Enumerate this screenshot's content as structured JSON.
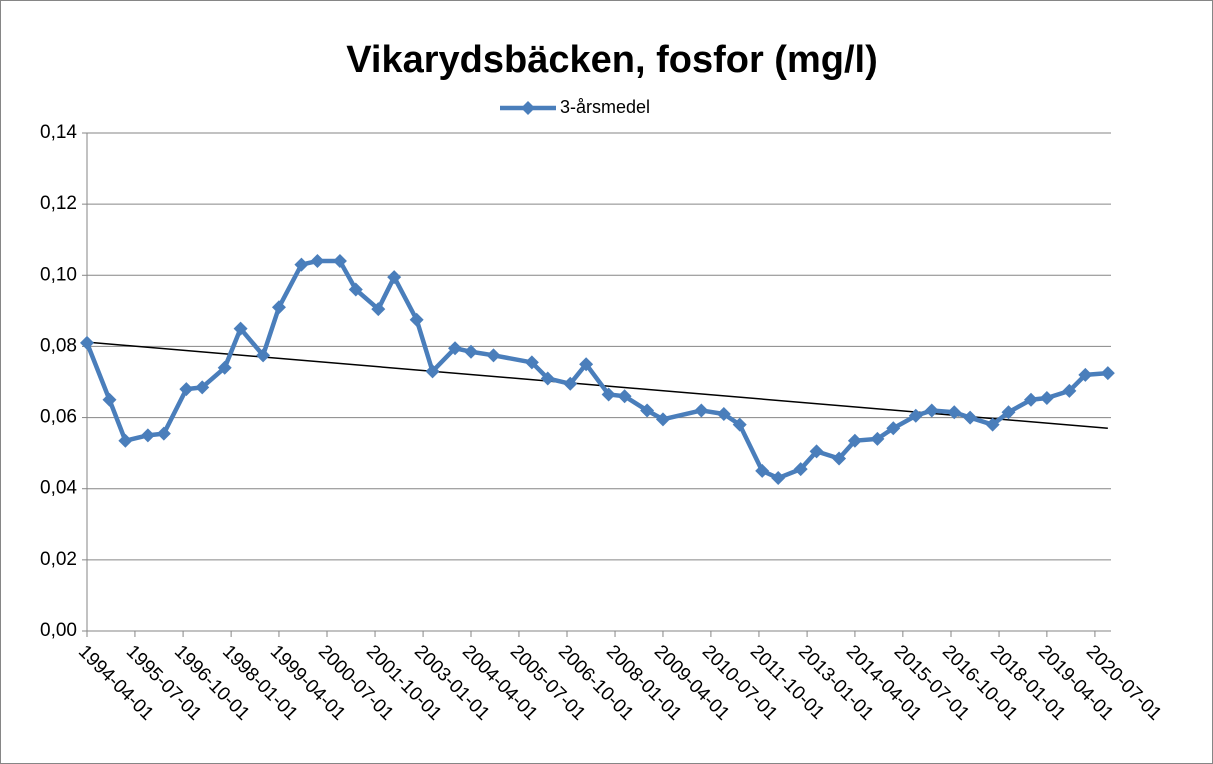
{
  "chart_data": {
    "type": "line",
    "title": "Vikarydsbäcken, fosfor (mg/l)",
    "x": [
      "1994-04-01",
      "1994-11-01",
      "1995-04-01",
      "1995-11-01",
      "1996-04-01",
      "1996-11-01",
      "1997-04-01",
      "1997-11-01",
      "1998-04-01",
      "1998-11-01",
      "1999-04-01",
      "1999-11-01",
      "2000-04-01",
      "2000-11-01",
      "2001-04-01",
      "2001-11-01",
      "2002-04-01",
      "2002-11-01",
      "2003-04-01",
      "2003-11-01",
      "2004-04-01",
      "2004-11-01",
      "2005-11-01",
      "2006-04-01",
      "2006-11-01",
      "2007-04-01",
      "2007-11-01",
      "2008-04-01",
      "2008-11-01",
      "2009-04-01",
      "2010-04-01",
      "2010-11-01",
      "2011-04-01",
      "2011-11-01",
      "2012-04-01",
      "2012-11-01",
      "2013-04-01",
      "2013-11-01",
      "2014-04-01",
      "2014-11-01",
      "2015-04-01",
      "2015-11-01",
      "2016-04-01",
      "2016-11-01",
      "2017-04-01",
      "2017-11-01",
      "2018-04-01",
      "2018-11-01",
      "2019-04-01",
      "2019-11-01",
      "2020-04-01",
      "2020-11-01"
    ],
    "series": [
      {
        "name": "3-årsmedel",
        "color": "#4a7ebb",
        "values": [
          0.081,
          0.065,
          0.0535,
          0.055,
          0.0555,
          0.068,
          0.0685,
          0.074,
          0.085,
          0.0775,
          0.091,
          0.103,
          0.104,
          0.104,
          0.096,
          0.0905,
          0.0995,
          0.0875,
          0.073,
          0.0795,
          0.0785,
          0.0775,
          0.0755,
          0.071,
          0.0695,
          0.075,
          0.0665,
          0.066,
          0.062,
          0.0595,
          0.062,
          0.061,
          0.058,
          0.045,
          0.043,
          0.0455,
          0.0505,
          0.0485,
          0.0535,
          0.054,
          0.057,
          0.0605,
          0.062,
          0.0615,
          0.06,
          0.058,
          0.0615,
          0.065,
          0.0655,
          0.0675,
          0.072,
          0.0725
        ]
      }
    ],
    "trendline": {
      "x": [
        "1994-04-01",
        "2020-11-01"
      ],
      "values": [
        0.0812,
        0.057
      ],
      "color": "#000000"
    },
    "xlim": [
      "1994-04-01",
      "2020-12-01"
    ],
    "xticks": [
      "1994-04-01",
      "1995-07-01",
      "1996-10-01",
      "1998-01-01",
      "1999-04-01",
      "2000-07-01",
      "2001-10-01",
      "2003-01-01",
      "2004-04-01",
      "2005-07-01",
      "2006-10-01",
      "2008-01-01",
      "2009-04-01",
      "2010-07-01",
      "2011-10-01",
      "2013-01-01",
      "2014-04-01",
      "2015-07-01",
      "2016-10-01",
      "2018-01-01",
      "2019-04-01",
      "2020-07-01"
    ],
    "ylim": [
      0,
      0.14
    ],
    "yticks": [
      {
        "value": 0,
        "label": "0,00"
      },
      {
        "value": 0.02,
        "label": "0,02"
      },
      {
        "value": 0.04,
        "label": "0,04"
      },
      {
        "value": 0.06,
        "label": "0,06"
      },
      {
        "value": 0.08,
        "label": "0,08"
      },
      {
        "value": 0.1,
        "label": "0,10"
      },
      {
        "value": 0.12,
        "label": "0,12"
      },
      {
        "value": 0.14,
        "label": "0,14"
      }
    ],
    "grid": true,
    "legend": "top"
  }
}
